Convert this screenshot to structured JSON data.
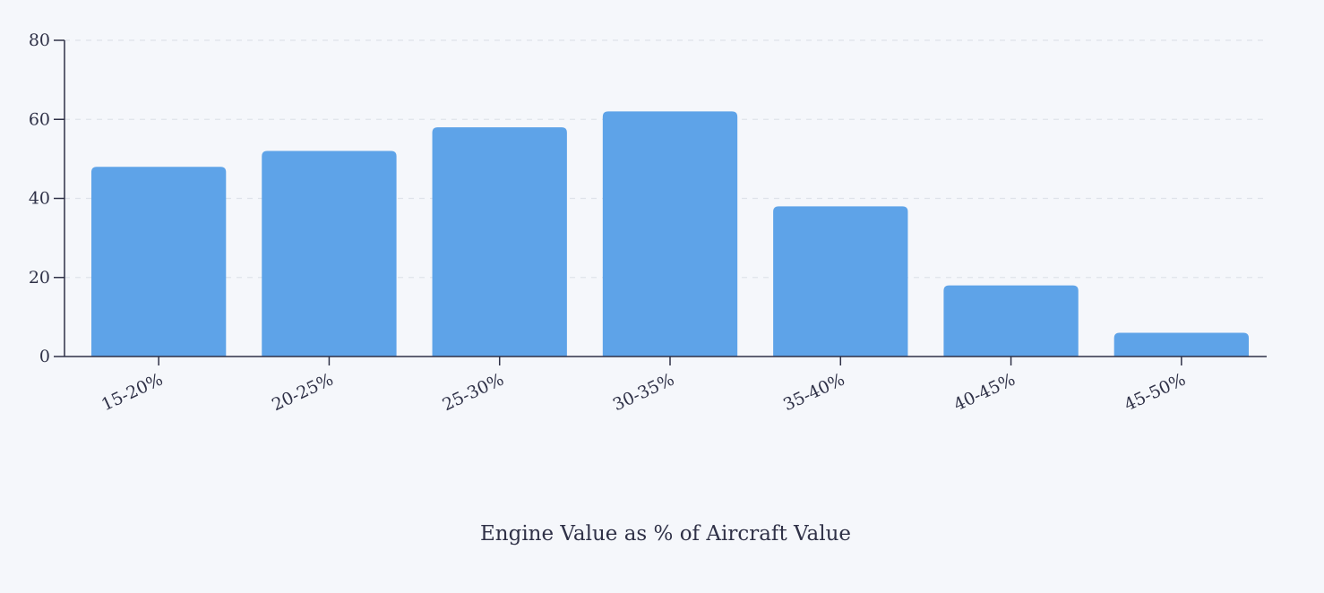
{
  "chart_data": {
    "type": "bar",
    "categories": [
      "15-20%",
      "20-25%",
      "25-30%",
      "30-35%",
      "35-40%",
      "40-45%",
      "45-50%"
    ],
    "values": [
      48,
      52,
      58,
      62,
      38,
      18,
      6
    ],
    "title": "",
    "xlabel": "Engine Value as % of Aircraft Value",
    "ylabel": "",
    "ylim": [
      0,
      80
    ],
    "yticks": [
      0,
      20,
      40,
      60,
      80
    ],
    "grid": true,
    "legend": "none",
    "colors": {
      "bar": "#5ea3e8",
      "axis": "#2f3147",
      "grid": "#dfe3ea",
      "text": "#2f3147",
      "background": "#f5f7fb"
    }
  }
}
